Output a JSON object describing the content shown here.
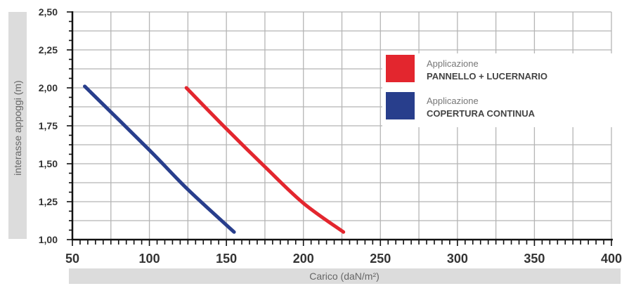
{
  "chart_data": {
    "type": "line",
    "xlabel": "Carico (daN/m²)",
    "ylabel": "interasse appoggi (m)",
    "xlim": [
      50,
      400
    ],
    "ylim": [
      1.0,
      2.5
    ],
    "x_ticks": [
      50,
      100,
      150,
      200,
      250,
      300,
      350,
      400
    ],
    "y_ticks": [
      "1,00",
      "1,25",
      "1,50",
      "1,75",
      "2,00",
      "2,25",
      "2,50"
    ],
    "y_tick_values": [
      1.0,
      1.25,
      1.5,
      1.75,
      2.0,
      2.25,
      2.5
    ],
    "grid": true,
    "legend_position": "top-right",
    "series": [
      {
        "name": "Applicazione PANNELLO + LUCERNARIO",
        "line1": "Applicazione",
        "line2": "PANNELLO + LUCERNARIO",
        "color": "#e3262e",
        "x": [
          124,
          150,
          175,
          200,
          226
        ],
        "y": [
          2.0,
          1.73,
          1.48,
          1.24,
          1.05
        ]
      },
      {
        "name": "Applicazione COPERTURA CONTINUA",
        "line1": "Applicazione",
        "line2": "COPERTURA CONTINUA",
        "color": "#283e8c",
        "x": [
          58,
          100,
          125,
          155
        ],
        "y": [
          2.01,
          1.59,
          1.33,
          1.05
        ]
      }
    ]
  }
}
